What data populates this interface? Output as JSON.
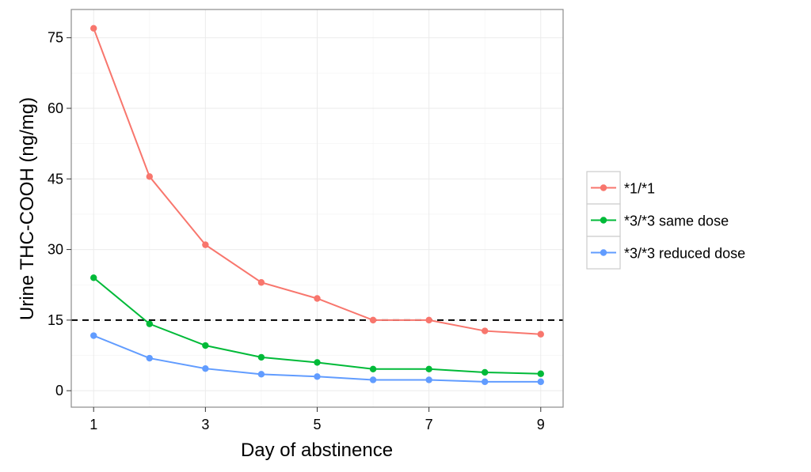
{
  "chart_data": {
    "type": "line",
    "title": "",
    "xlabel": "Day of abstinence",
    "ylabel": "Urine THC-COOH (ng/mg)",
    "x": [
      1,
      2,
      3,
      4,
      5,
      6,
      7,
      8,
      9
    ],
    "xlim": [
      0.6,
      9.4
    ],
    "ylim": [
      -3.5,
      81
    ],
    "xticks": [
      1,
      3,
      5,
      7,
      9
    ],
    "xtick_labels": [
      "1",
      "3",
      "5",
      "7",
      "9"
    ],
    "yticks": [
      0,
      15,
      30,
      45,
      60,
      75
    ],
    "ytick_labels": [
      "0",
      "15",
      "30",
      "45",
      "60",
      "75"
    ],
    "grid": true,
    "reference_line": {
      "y": 15,
      "style": "dashed",
      "color": "#000000"
    },
    "legend_position": "right",
    "series": [
      {
        "name": "*1/*1",
        "color": "#F8766D",
        "values": [
          77,
          45.5,
          31,
          23,
          19.6,
          15,
          15,
          12.7,
          12
        ]
      },
      {
        "name": "*3/*3 same dose",
        "color": "#00BA38",
        "values": [
          24,
          14.2,
          9.6,
          7.1,
          6,
          4.6,
          4.6,
          3.9,
          3.6
        ]
      },
      {
        "name": "*3/*3 reduced dose",
        "color": "#619CFF",
        "values": [
          11.7,
          6.9,
          4.7,
          3.5,
          3,
          2.3,
          2.3,
          1.9,
          1.9
        ]
      }
    ]
  }
}
